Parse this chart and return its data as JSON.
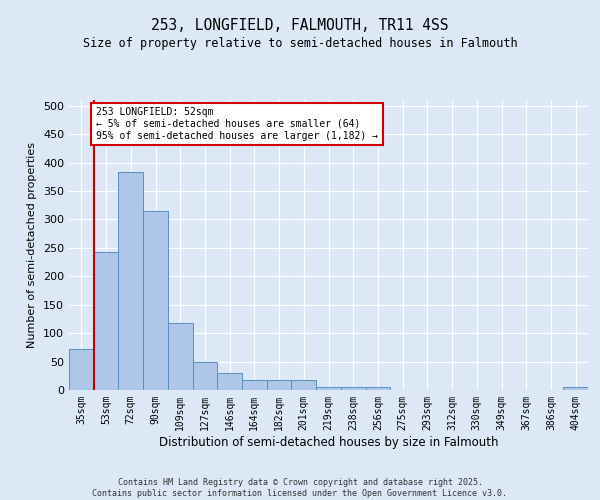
{
  "title_line1": "253, LONGFIELD, FALMOUTH, TR11 4SS",
  "title_line2": "Size of property relative to semi-detached houses in Falmouth",
  "xlabel": "Distribution of semi-detached houses by size in Falmouth",
  "ylabel": "Number of semi-detached properties",
  "categories": [
    "35sqm",
    "53sqm",
    "72sqm",
    "90sqm",
    "109sqm",
    "127sqm",
    "146sqm",
    "164sqm",
    "182sqm",
    "201sqm",
    "219sqm",
    "238sqm",
    "256sqm",
    "275sqm",
    "293sqm",
    "312sqm",
    "330sqm",
    "349sqm",
    "367sqm",
    "386sqm",
    "404sqm"
  ],
  "values": [
    72,
    243,
    383,
    315,
    117,
    50,
    30,
    18,
    17,
    17,
    5,
    5,
    5,
    0,
    0,
    0,
    0,
    0,
    0,
    0,
    5
  ],
  "bar_color": "#aec6e8",
  "bar_edge_color": "#5a8fc0",
  "highlight_color": "#cc0000",
  "annotation_text": "253 LONGFIELD: 52sqm\n← 5% of semi-detached houses are smaller (64)\n95% of semi-detached houses are larger (1,182) →",
  "annotation_box_color": "#ffffff",
  "annotation_box_edge": "#cc0000",
  "ylim": [
    0,
    510
  ],
  "yticks": [
    0,
    50,
    100,
    150,
    200,
    250,
    300,
    350,
    400,
    450,
    500
  ],
  "footer_text": "Contains HM Land Registry data © Crown copyright and database right 2025.\nContains public sector information licensed under the Open Government Licence v3.0.",
  "background_color": "#dce8f5",
  "plot_background": "#dce8f5",
  "grid_color": "#ffffff"
}
